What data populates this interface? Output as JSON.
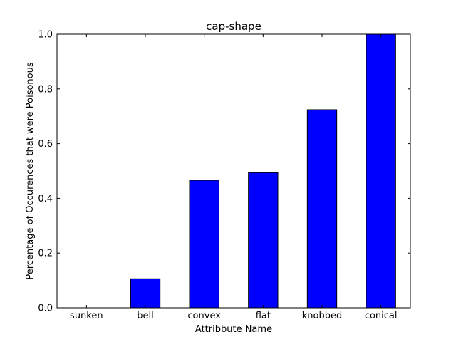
{
  "chart_data": {
    "type": "bar",
    "title": "cap-shape",
    "xlabel": "Attribbute Name",
    "ylabel": "Percentage of Occurences that were Poisonous",
    "categories": [
      "sunken",
      "bell",
      "convex",
      "flat",
      "knobbed",
      "conical"
    ],
    "values": [
      0.0,
      0.106,
      0.466,
      0.494,
      0.724,
      1.0
    ],
    "ylim": [
      0,
      1.0
    ],
    "yticks": [
      "0.0",
      "0.2",
      "0.4",
      "0.6",
      "0.8",
      "1.0"
    ],
    "grid": false,
    "bar_color": "#0000ff"
  }
}
